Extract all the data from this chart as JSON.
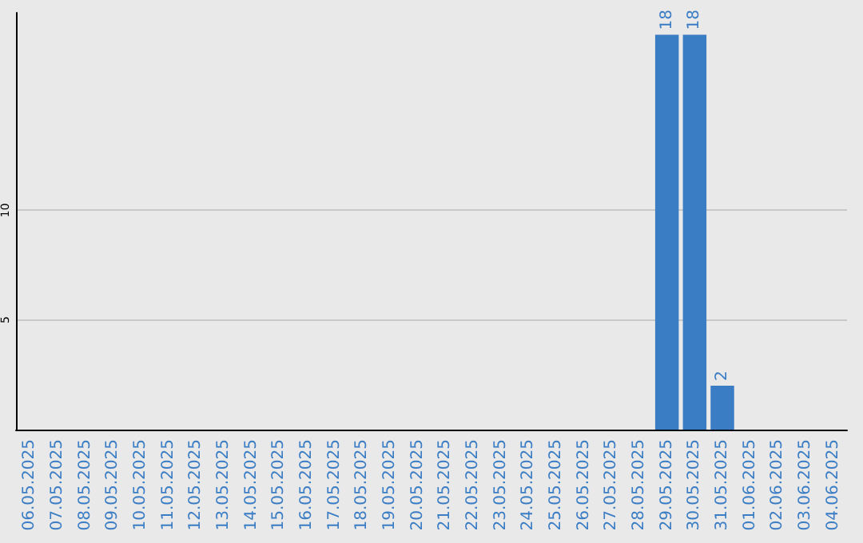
{
  "chart_data": {
    "type": "bar",
    "categories": [
      "06.05.2025",
      "07.05.2025",
      "08.05.2025",
      "09.05.2025",
      "10.05.2025",
      "11.05.2025",
      "12.05.2025",
      "13.05.2025",
      "14.05.2025",
      "15.05.2025",
      "16.05.2025",
      "17.05.2025",
      "18.05.2025",
      "19.05.2025",
      "20.05.2025",
      "21.05.2025",
      "22.05.2025",
      "23.05.2025",
      "24.05.2025",
      "25.05.2025",
      "26.05.2025",
      "27.05.2025",
      "28.05.2025",
      "29.05.2025",
      "30.05.2025",
      "31.05.2025",
      "01.06.2025",
      "02.06.2025",
      "03.06.2025",
      "04.06.2025"
    ],
    "values": [
      0,
      0,
      0,
      0,
      0,
      0,
      0,
      0,
      0,
      0,
      0,
      0,
      0,
      0,
      0,
      0,
      0,
      0,
      0,
      0,
      0,
      0,
      0,
      18,
      18,
      2,
      0,
      0,
      0,
      0
    ],
    "value_labels": [
      null,
      null,
      null,
      null,
      null,
      null,
      null,
      null,
      null,
      null,
      null,
      null,
      null,
      null,
      null,
      null,
      null,
      null,
      null,
      null,
      null,
      null,
      null,
      "18",
      "18",
      "2",
      null,
      null,
      null,
      null
    ],
    "color": "#3b7dc4",
    "ylim": [
      0,
      19
    ],
    "yticks": [
      5,
      10
    ],
    "grid": "y"
  }
}
